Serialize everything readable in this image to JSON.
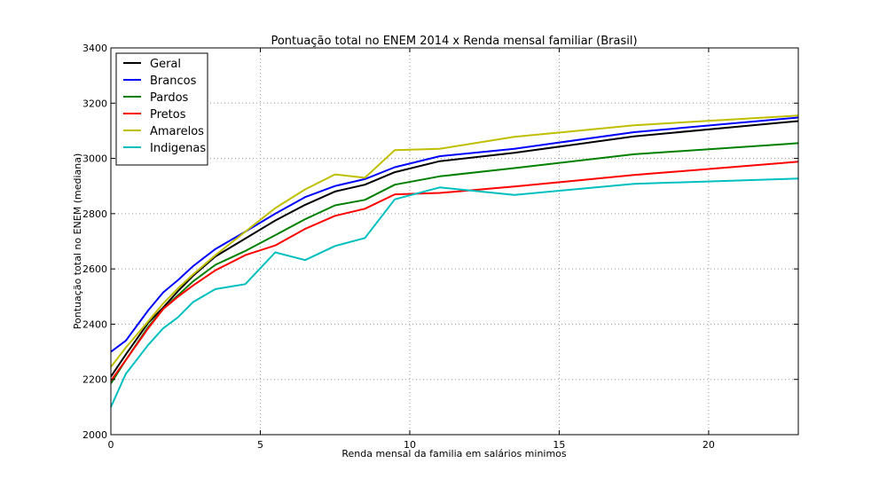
{
  "chart_data": {
    "type": "line",
    "title": "Pontuação total no ENEM 2014 x Renda mensal familiar (Brasil)",
    "xlabel": "Renda mensal da familia em salários minimos",
    "ylabel": "Pontuação total no ENEM (mediana)",
    "xlim": [
      0,
      23
    ],
    "ylim": [
      2000,
      3400
    ],
    "xticks": [
      0,
      5,
      10,
      15,
      20
    ],
    "yticks": [
      2000,
      2200,
      2400,
      2600,
      2800,
      3000,
      3200,
      3400
    ],
    "grid": true,
    "legend_position": "top-left",
    "series": [
      {
        "name": "Geral",
        "color": "#000000",
        "x": [
          0,
          0.5,
          1.25,
          1.75,
          2.25,
          2.75,
          3.5,
          4.5,
          5.5,
          6.5,
          7.5,
          8.5,
          9.5,
          11,
          13.5,
          17.5,
          23
        ],
        "y": [
          2210,
          2290,
          2405,
          2460,
          2520,
          2575,
          2645,
          2710,
          2775,
          2832,
          2880,
          2905,
          2950,
          2990,
          3020,
          3080,
          3135
        ]
      },
      {
        "name": "Brancos",
        "color": "#0000ff",
        "x": [
          0,
          0.5,
          1.25,
          1.75,
          2.25,
          2.75,
          3.5,
          4.5,
          5.5,
          6.5,
          7.5,
          8.5,
          9.5,
          11,
          13.5,
          17.5,
          23
        ],
        "y": [
          2300,
          2340,
          2450,
          2515,
          2560,
          2610,
          2672,
          2735,
          2800,
          2860,
          2900,
          2925,
          2968,
          3008,
          3035,
          3095,
          3148
        ]
      },
      {
        "name": "Pardos",
        "color": "#008000",
        "x": [
          0,
          0.5,
          1.25,
          1.75,
          2.25,
          2.75,
          3.5,
          4.5,
          5.5,
          6.5,
          7.5,
          8.5,
          9.5,
          11,
          13.5,
          17.5,
          23
        ],
        "y": [
          2185,
          2270,
          2390,
          2455,
          2505,
          2555,
          2615,
          2665,
          2722,
          2780,
          2830,
          2850,
          2905,
          2935,
          2965,
          3015,
          3055
        ]
      },
      {
        "name": "Pretos",
        "color": "#ff0000",
        "x": [
          0,
          0.5,
          1.25,
          1.75,
          2.25,
          2.75,
          3.5,
          4.5,
          5.5,
          6.5,
          7.5,
          8.5,
          9.5,
          11,
          13.5,
          17.5,
          23
        ],
        "y": [
          2195,
          2270,
          2385,
          2455,
          2500,
          2540,
          2595,
          2650,
          2685,
          2745,
          2792,
          2818,
          2870,
          2875,
          2898,
          2940,
          2988
        ]
      },
      {
        "name": "Amarelos",
        "color": "#bfbf00",
        "x": [
          0,
          0.5,
          1.25,
          1.75,
          2.25,
          2.75,
          3.5,
          4.5,
          5.5,
          6.5,
          7.5,
          8.5,
          9.5,
          11,
          13.5,
          17.5,
          23
        ],
        "y": [
          2245,
          2315,
          2410,
          2475,
          2530,
          2580,
          2650,
          2735,
          2820,
          2888,
          2942,
          2930,
          3030,
          3035,
          3078,
          3120,
          3155
        ]
      },
      {
        "name": "Indigenas",
        "color": "#00bfbf",
        "x": [
          0,
          0.5,
          1.25,
          1.75,
          2.25,
          2.75,
          3.5,
          4.5,
          5.5,
          6.5,
          7.5,
          8.5,
          9.5,
          11,
          13.5,
          17.5,
          23
        ],
        "y": [
          2100,
          2220,
          2325,
          2385,
          2425,
          2480,
          2527,
          2545,
          2660,
          2632,
          2683,
          2712,
          2852,
          2895,
          2868,
          2908,
          2927
        ]
      }
    ]
  }
}
